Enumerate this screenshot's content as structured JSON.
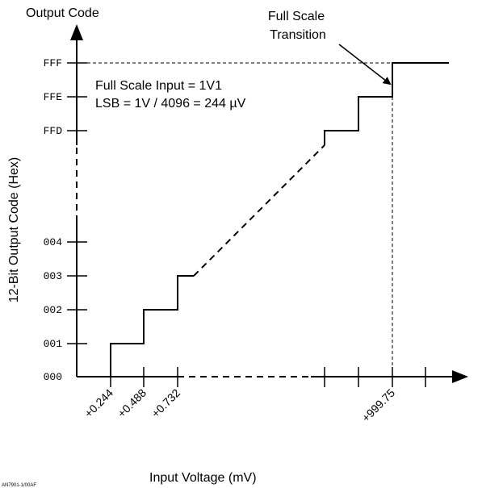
{
  "labels": {
    "y_axis_top": "Output Code",
    "y_axis_side": "12-Bit Output Code (Hex)",
    "x_axis": "Input Voltage (mV)",
    "annotation_line1": "Full Scale",
    "annotation_line2": "Transition",
    "info_line1": "Full Scale Input = 1V1",
    "info_line2": "LSB = 1V / 4096 = 244 µV",
    "figure_id": "AN7901-1/00AF"
  },
  "y_codes": [
    "000",
    "001",
    "002",
    "003",
    "004",
    "FFD",
    "FFE",
    "FFF"
  ],
  "x_ticks": [
    "+0.244",
    "+0.488",
    "+0.732",
    "+999.75"
  ],
  "colors": {
    "line": "#000000",
    "background": "#ffffff"
  }
}
